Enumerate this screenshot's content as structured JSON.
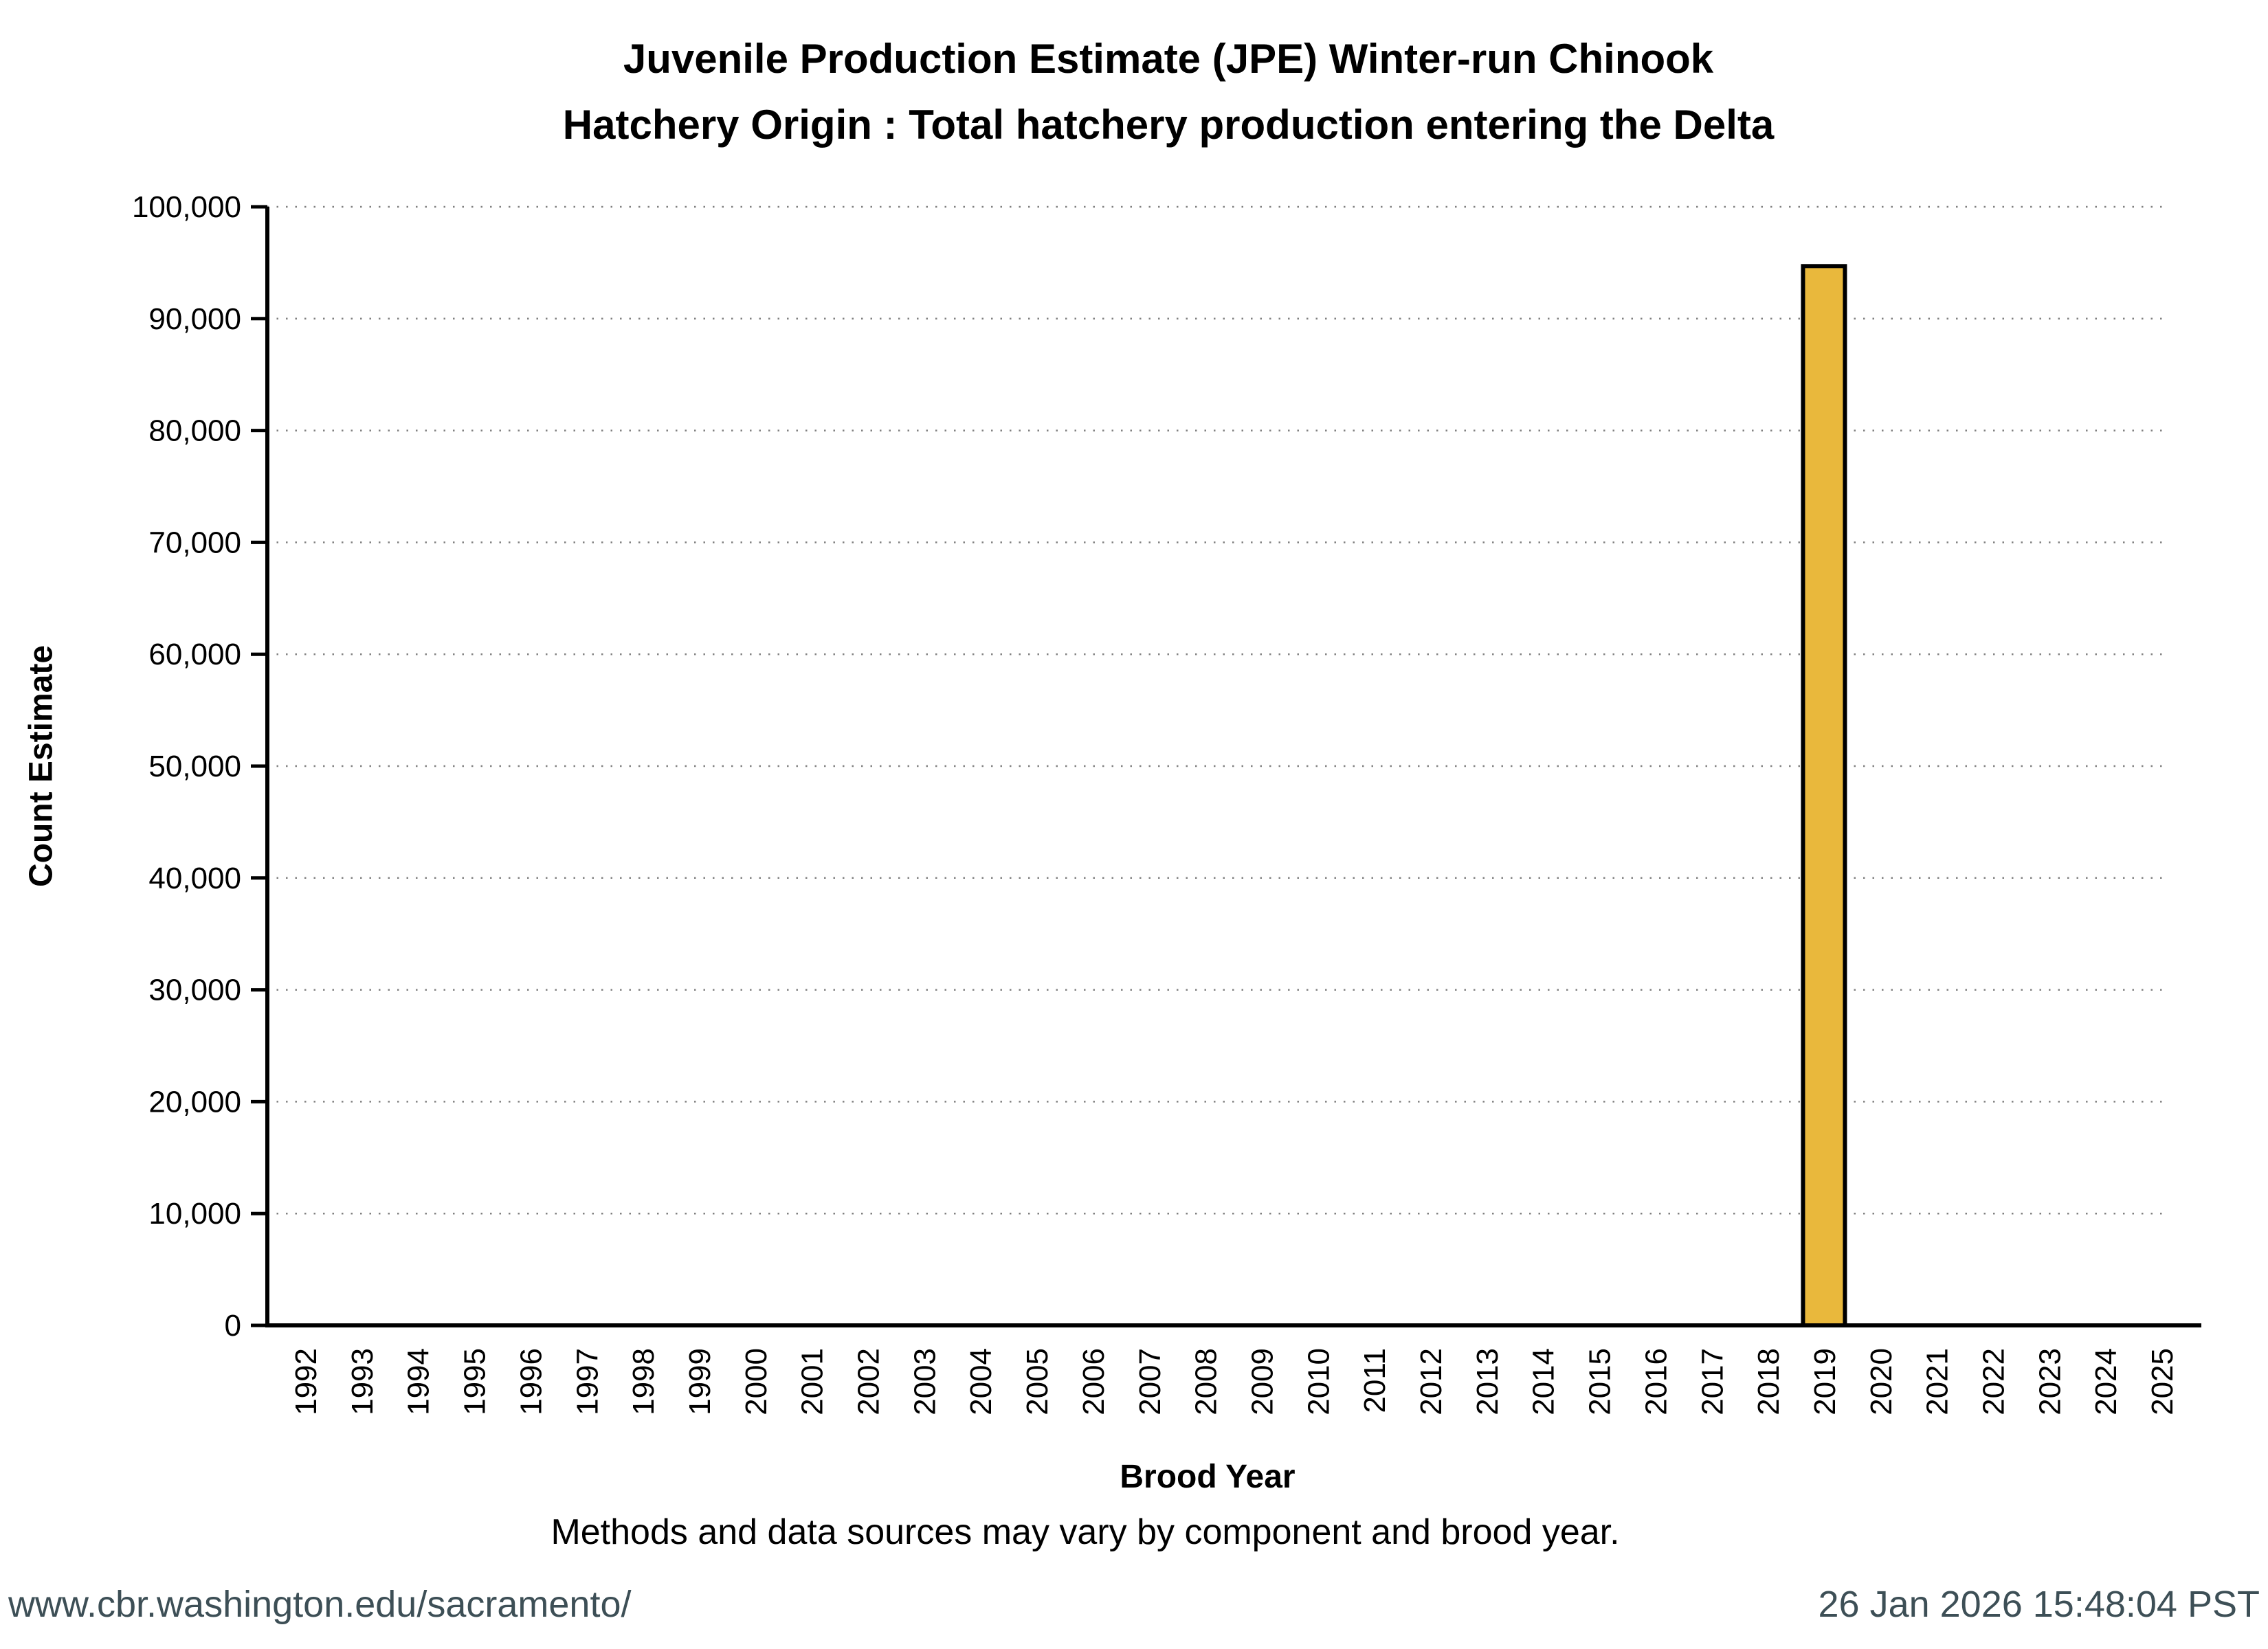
{
  "title": {
    "line1": "Juvenile Production Estimate (JPE) Winter-run Chinook",
    "line2": "Hatchery Origin : Total hatchery production entering the Delta"
  },
  "note": {
    "text": "Methods and data sources may vary by component and brood year."
  },
  "footer": {
    "url": "www.cbr.washington.edu/sacramento/",
    "timestamp": "26 Jan 2026 15:48:04 PST",
    "text_color": "#3D4F56"
  },
  "chart_data": {
    "type": "bar",
    "title": "Juvenile Production Estimate (JPE) Winter-run Chinook — Hatchery Origin : Total hatchery production entering the Delta",
    "xlabel": "Brood Year",
    "ylabel": "Count Estimate",
    "categories": [
      "1992",
      "1993",
      "1994",
      "1995",
      "1996",
      "1997",
      "1998",
      "1999",
      "2000",
      "2001",
      "2002",
      "2003",
      "2004",
      "2005",
      "2006",
      "2007",
      "2008",
      "2009",
      "2010",
      "2011",
      "2012",
      "2013",
      "2014",
      "2015",
      "2016",
      "2017",
      "2018",
      "2019",
      "2020",
      "2021",
      "2022",
      "2023",
      "2024",
      "2025"
    ],
    "values": [
      null,
      null,
      null,
      null,
      null,
      null,
      null,
      null,
      null,
      null,
      null,
      null,
      null,
      null,
      null,
      null,
      null,
      null,
      null,
      null,
      null,
      null,
      null,
      null,
      null,
      null,
      null,
      94700,
      null,
      null,
      null,
      null,
      null,
      null
    ],
    "ylim": [
      0,
      100000
    ],
    "ytick_interval": 10000,
    "ytick_labels": [
      "0",
      "10,000",
      "20,000",
      "30,000",
      "40,000",
      "50,000",
      "60,000",
      "70,000",
      "80,000",
      "90,000",
      "100,000"
    ],
    "grid": "horizontal-dotted",
    "legend": "none",
    "bar_color": "#E9B83C",
    "bar_edge_color": "#000000",
    "grid_color": "#808080",
    "axis_color": "#000000"
  }
}
